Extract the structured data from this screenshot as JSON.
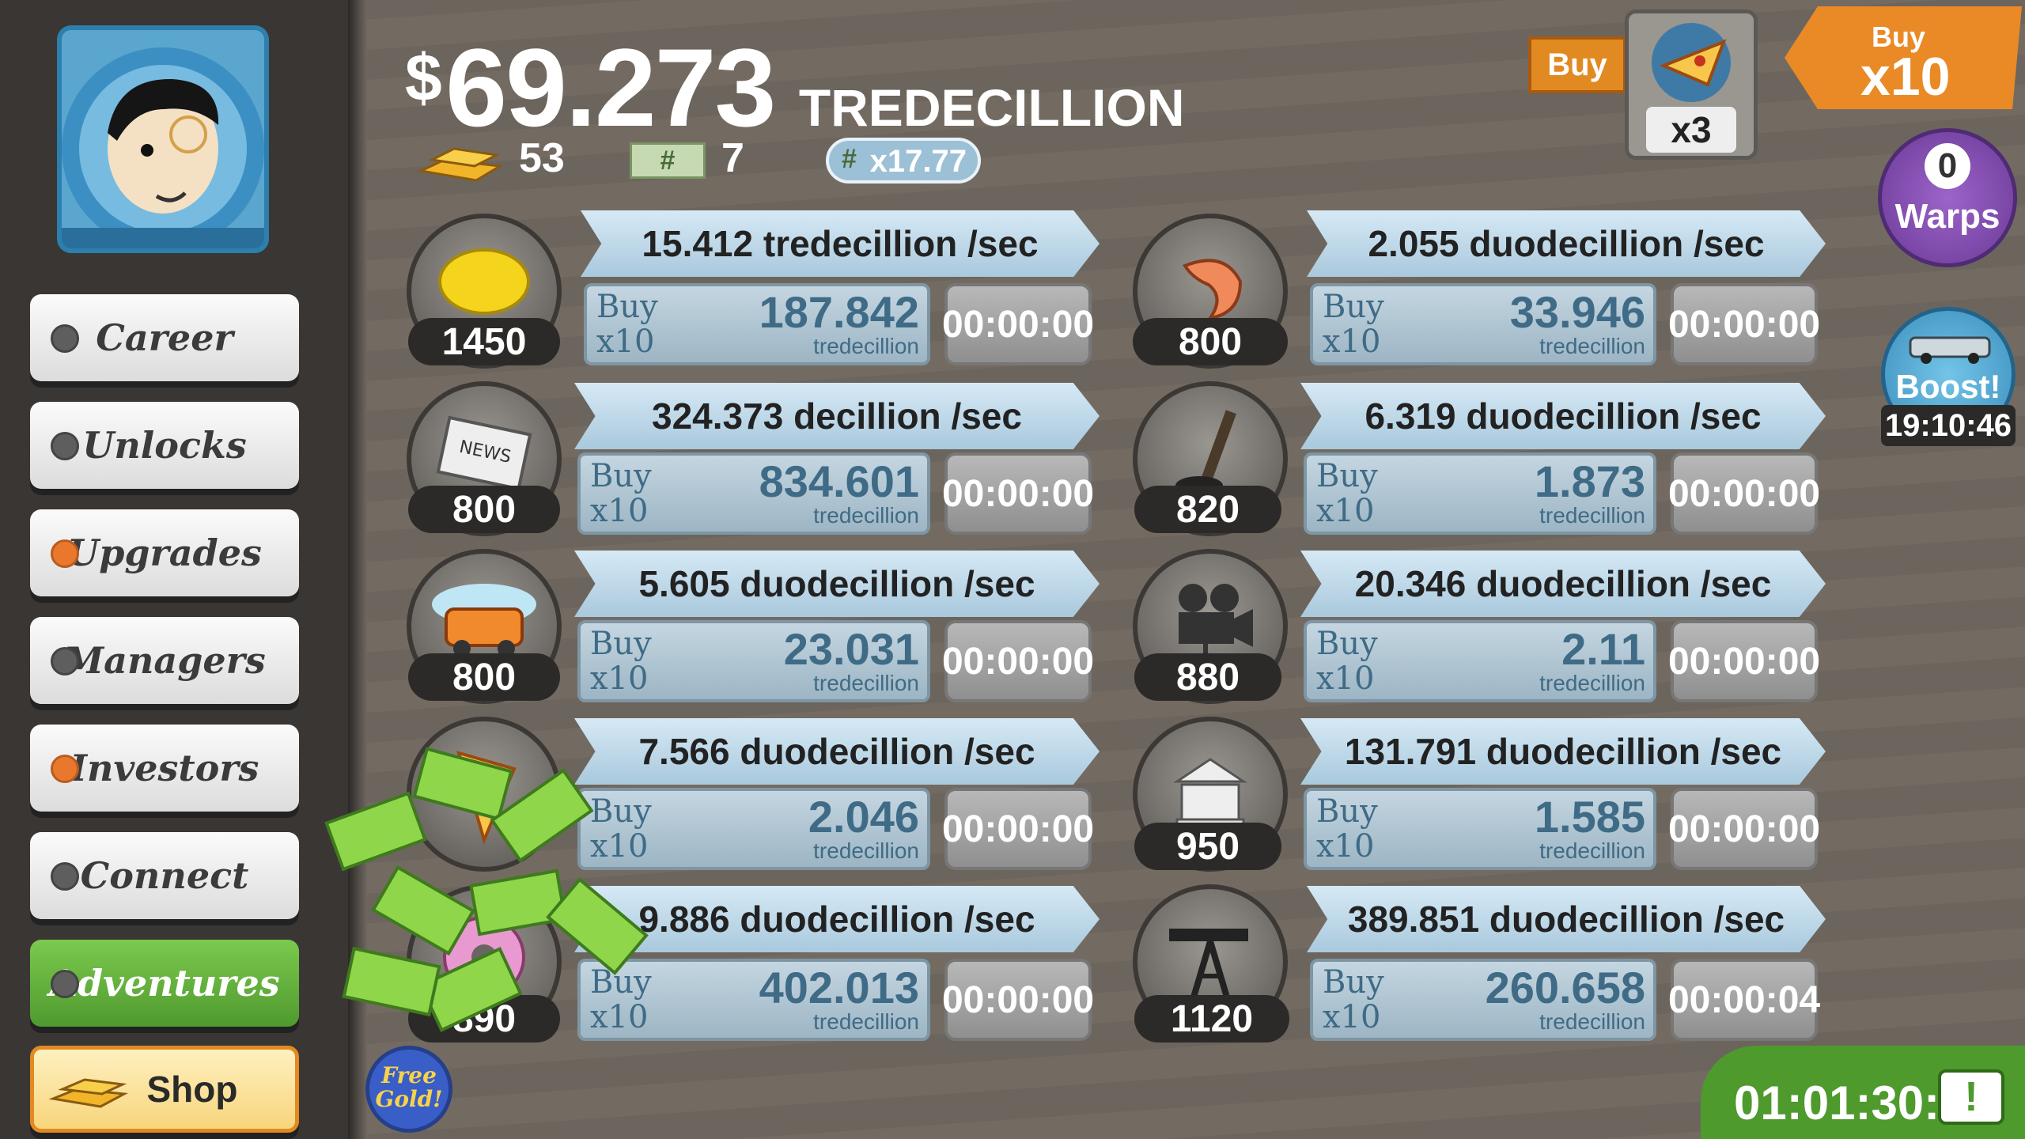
{
  "header": {
    "currency_symbol": "$",
    "money_amount": "69.273",
    "money_unit": "TREDECILLION",
    "gold_bars": "53",
    "megabucks": "7",
    "multiplier": "x17.77"
  },
  "sidebar": {
    "items": [
      {
        "label": "Career",
        "badge": false
      },
      {
        "label": "Unlocks",
        "badge": false
      },
      {
        "label": "Upgrades",
        "badge": true
      },
      {
        "label": "Managers",
        "badge": false
      },
      {
        "label": "Investors",
        "badge": true
      },
      {
        "label": "Connect",
        "badge": false
      },
      {
        "label": "Adventures",
        "badge": false,
        "active": true
      },
      {
        "label": "Shop"
      }
    ]
  },
  "free_gold": {
    "line1": "Free",
    "line2": "Gold!"
  },
  "businesses": [
    {
      "icon": "lemon-icon",
      "count": "1450",
      "rate": "15.412 tredecillion /sec",
      "buy_label1": "Buy",
      "buy_label2": "x10",
      "cost": "187.842",
      "cost_unit": "tredecillion",
      "timer": "00:00:00"
    },
    {
      "icon": "newspaper-icon",
      "count": "800",
      "rate": "324.373 decillion /sec",
      "buy_label1": "Buy",
      "buy_label2": "x10",
      "cost": "834.601",
      "cost_unit": "tredecillion",
      "timer": "00:00:00"
    },
    {
      "icon": "car-wash-icon",
      "count": "800",
      "rate": "5.605 duodecillion /sec",
      "buy_label1": "Buy",
      "buy_label2": "x10",
      "cost": "23.031",
      "cost_unit": "tredecillion",
      "timer": "00:00:00"
    },
    {
      "icon": "pizza-icon",
      "count": "",
      "rate": "7.566 duodecillion /sec",
      "buy_label1": "Buy",
      "buy_label2": "x10",
      "cost": "2.046",
      "cost_unit": "tredecillion",
      "timer": "00:00:00"
    },
    {
      "icon": "donut-icon",
      "count": "890",
      "rate": "9.886 duodecillion /sec",
      "buy_label1": "Buy",
      "buy_label2": "x10",
      "cost": "402.013",
      "cost_unit": "tredecillion",
      "timer": "00:00:00"
    },
    {
      "icon": "shrimp-icon",
      "count": "800",
      "rate": "2.055 duodecillion /sec",
      "buy_label1": "Buy",
      "buy_label2": "x10",
      "cost": "33.946",
      "cost_unit": "tredecillion",
      "timer": "00:00:00"
    },
    {
      "icon": "hockey-icon",
      "count": "820",
      "rate": "6.319 duodecillion /sec",
      "buy_label1": "Buy",
      "buy_label2": "x10",
      "cost": "1.873",
      "cost_unit": "tredecillion",
      "timer": "00:00:00"
    },
    {
      "icon": "movie-camera-icon",
      "count": "880",
      "rate": "20.346 duodecillion /sec",
      "buy_label1": "Buy",
      "buy_label2": "x10",
      "cost": "2.11",
      "cost_unit": "tredecillion",
      "timer": "00:00:00"
    },
    {
      "icon": "bank-icon",
      "count": "950",
      "rate": "131.791 duodecillion /sec",
      "buy_label1": "Buy",
      "buy_label2": "x10",
      "cost": "1.585",
      "cost_unit": "tredecillion",
      "timer": "00:00:00"
    },
    {
      "icon": "oil-rig-icon",
      "count": "1120",
      "rate": "389.851 duodecillion /sec",
      "buy_label1": "Buy",
      "buy_label2": "x10",
      "cost": "260.658",
      "cost_unit": "tredecillion",
      "timer": "00:00:04"
    }
  ],
  "top_right": {
    "buy_label": "Buy",
    "pizza_multiplier": "x3",
    "buy_x_top": "Buy",
    "buy_x_bottom": "x10",
    "warps_count": "0",
    "warps_label": "Warps",
    "boost_label": "Boost!",
    "boost_timer": "19:10:46"
  },
  "adventure_timer": "01:01:30:2",
  "colors": {
    "accent_orange": "#ea8a26",
    "banner_blue": "#a9c9dd",
    "active_green": "#5ba83a"
  }
}
